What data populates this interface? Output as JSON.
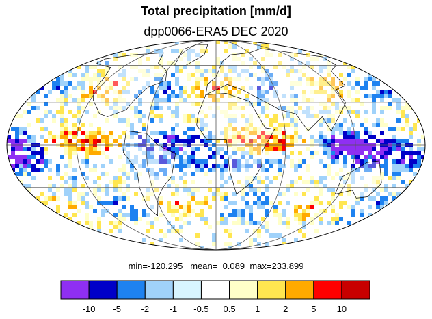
{
  "header": {
    "title": "Total precipitation [mm/d]",
    "subtitle": "dpp0066-ERA5 DEC 2020"
  },
  "stats": {
    "min_label": "min=",
    "min_value": "-120.295",
    "mean_label": "mean=",
    "mean_value": "0.089",
    "max_label": "max=",
    "max_value": "233.899"
  },
  "colorbar": {
    "colors": [
      "#8f2ff2",
      "#0000c8",
      "#1e82f0",
      "#a0d2fa",
      "#d8f5ff",
      "#ffffff",
      "#ffffc8",
      "#ffe650",
      "#ffaa00",
      "#ff0000",
      "#c80000"
    ],
    "tick_labels": [
      "-10",
      "-5",
      "-2",
      "-1",
      "-0.5",
      "0.5",
      "1",
      "2",
      "5",
      "10"
    ]
  },
  "map": {
    "projection": "Mollweide",
    "graticule": true,
    "coastlines": true,
    "field_colors": {
      "strong_negative": "#8f2ff2",
      "negative": "#0000c8",
      "moderate_negative": "#1e82f0",
      "weak_negative": "#a0d2fa",
      "slight_positive": "#ffffc8",
      "weak_positive": "#ffe650",
      "moderate_positive": "#ffaa00",
      "positive": "#ff0000",
      "strong_positive": "#c80000"
    }
  }
}
